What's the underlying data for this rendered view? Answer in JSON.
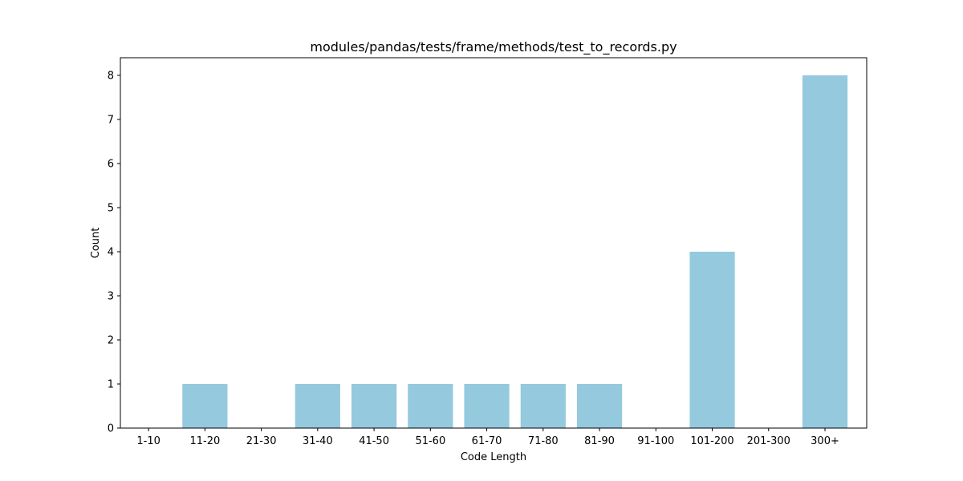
{
  "chart_data": {
    "type": "bar",
    "title": "modules/pandas/tests/frame/methods/test_to_records.py",
    "xlabel": "Code Length",
    "ylabel": "Count",
    "categories": [
      "1-10",
      "11-20",
      "21-30",
      "31-40",
      "41-50",
      "51-60",
      "61-70",
      "71-80",
      "81-90",
      "91-100",
      "101-200",
      "201-300",
      "300+"
    ],
    "values": [
      0,
      1,
      0,
      1,
      1,
      1,
      1,
      1,
      1,
      0,
      4,
      0,
      8
    ],
    "ylim": [
      0,
      8.4
    ],
    "yticks": [
      0,
      1,
      2,
      3,
      4,
      5,
      6,
      7,
      8
    ],
    "bar_color": "#94c9de",
    "grid": false,
    "legend": "none"
  }
}
